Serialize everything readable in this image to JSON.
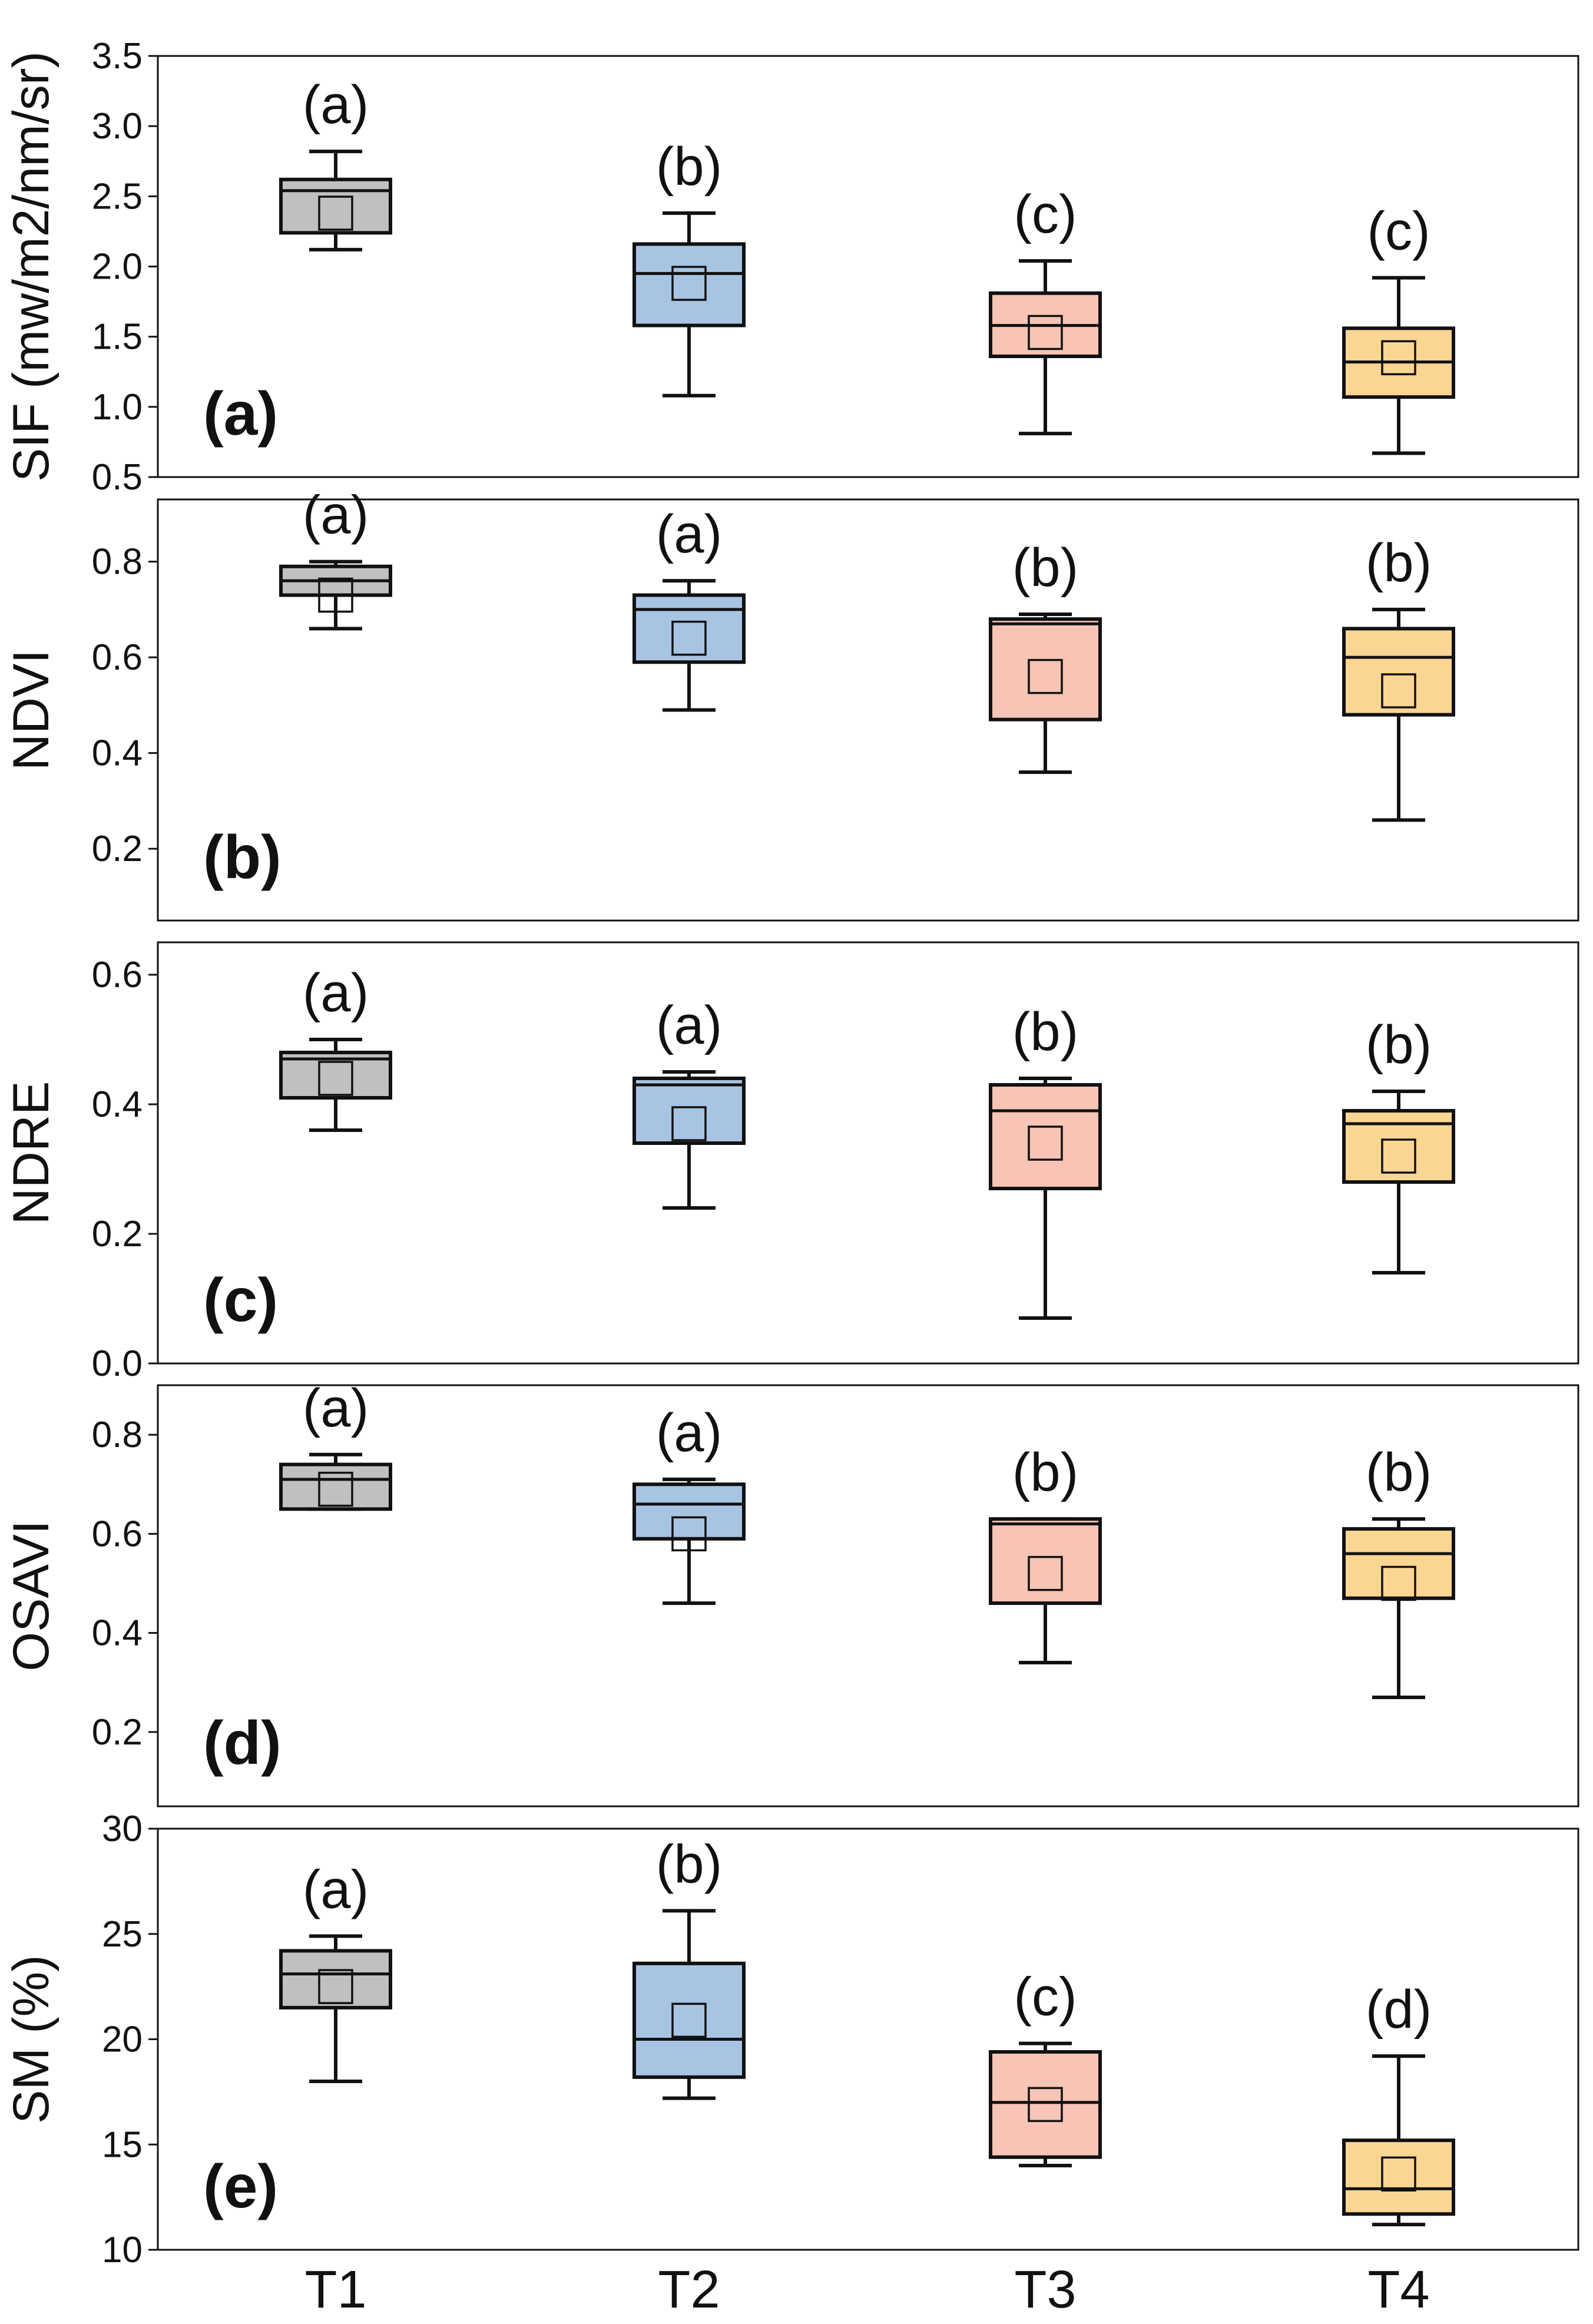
{
  "colors": {
    "T1": "#c0c0c0",
    "T2": "#a7c4e3",
    "T3": "#f7c4b6",
    "T4": "#fbd592",
    "stroke": "#111111"
  },
  "chart_data": [
    {
      "type": "box",
      "panel_label": "(a)",
      "ylabel": "SIF (mw/m2/nm/sr)",
      "ylim": [
        0.5,
        3.5
      ],
      "yticks": [
        "3.5",
        "3.0",
        "2.5",
        "2.0",
        "1.5",
        "1.0",
        "0.5"
      ],
      "ytick_values": [
        3.5,
        3.0,
        2.5,
        2.0,
        1.5,
        1.0,
        0.5
      ],
      "categories": [
        "T1",
        "T2",
        "T3",
        "T4"
      ],
      "boxes": [
        {
          "whisker_low": 2.12,
          "q1": 2.24,
          "median": 2.54,
          "q3": 2.62,
          "whisker_high": 2.82,
          "mean": 2.38,
          "sig": "(a)"
        },
        {
          "whisker_low": 1.08,
          "q1": 1.58,
          "median": 1.95,
          "q3": 2.16,
          "whisker_high": 2.38,
          "mean": 1.88,
          "sig": "(b)"
        },
        {
          "whisker_low": 0.81,
          "q1": 1.36,
          "median": 1.58,
          "q3": 1.81,
          "whisker_high": 2.04,
          "mean": 1.53,
          "sig": "(c)"
        },
        {
          "whisker_low": 0.67,
          "q1": 1.07,
          "median": 1.32,
          "q3": 1.56,
          "whisker_high": 1.92,
          "mean": 1.35,
          "sig": "(c)"
        }
      ]
    },
    {
      "type": "box",
      "panel_label": "(b)",
      "ylabel": "NDVI",
      "ylim": [
        0.05,
        0.93
      ],
      "yticks": [
        "0.8",
        "0.6",
        "0.4",
        "0.2"
      ],
      "ytick_values": [
        0.8,
        0.6,
        0.4,
        0.2
      ],
      "categories": [
        "T1",
        "T2",
        "T3",
        "T4"
      ],
      "boxes": [
        {
          "whisker_low": 0.66,
          "q1": 0.73,
          "median": 0.76,
          "q3": 0.79,
          "whisker_high": 0.8,
          "mean": 0.73,
          "sig": "(a)"
        },
        {
          "whisker_low": 0.49,
          "q1": 0.59,
          "median": 0.7,
          "q3": 0.73,
          "whisker_high": 0.76,
          "mean": 0.64,
          "sig": "(a)"
        },
        {
          "whisker_low": 0.36,
          "q1": 0.47,
          "median": 0.67,
          "q3": 0.68,
          "whisker_high": 0.69,
          "mean": 0.56,
          "sig": "(b)"
        },
        {
          "whisker_low": 0.26,
          "q1": 0.48,
          "median": 0.6,
          "q3": 0.66,
          "whisker_high": 0.7,
          "mean": 0.53,
          "sig": "(b)"
        }
      ]
    },
    {
      "type": "box",
      "panel_label": "(c)",
      "ylabel": "NDRE",
      "ylim": [
        0.0,
        0.65
      ],
      "yticks": [
        "0.6",
        "0.4",
        "0.2",
        "0.0"
      ],
      "ytick_values": [
        0.6,
        0.4,
        0.2,
        0.0
      ],
      "categories": [
        "T1",
        "T2",
        "T3",
        "T4"
      ],
      "boxes": [
        {
          "whisker_low": 0.36,
          "q1": 0.41,
          "median": 0.47,
          "q3": 0.48,
          "whisker_high": 0.5,
          "mean": 0.44,
          "sig": "(a)"
        },
        {
          "whisker_low": 0.24,
          "q1": 0.34,
          "median": 0.43,
          "q3": 0.44,
          "whisker_high": 0.45,
          "mean": 0.37,
          "sig": "(a)"
        },
        {
          "whisker_low": 0.07,
          "q1": 0.27,
          "median": 0.39,
          "q3": 0.43,
          "whisker_high": 0.44,
          "mean": 0.34,
          "sig": "(b)"
        },
        {
          "whisker_low": 0.14,
          "q1": 0.28,
          "median": 0.37,
          "q3": 0.39,
          "whisker_high": 0.42,
          "mean": 0.32,
          "sig": "(b)"
        }
      ]
    },
    {
      "type": "box",
      "panel_label": "(d)",
      "ylabel": "OSAVI",
      "ylim": [
        0.05,
        0.9
      ],
      "yticks": [
        "0.8",
        "0.6",
        "0.4",
        "0.2"
      ],
      "ytick_values": [
        0.8,
        0.6,
        0.4,
        0.2
      ],
      "categories": [
        "T1",
        "T2",
        "T3",
        "T4"
      ],
      "boxes": [
        {
          "whisker_low": 0.65,
          "q1": 0.65,
          "median": 0.71,
          "q3": 0.74,
          "whisker_high": 0.76,
          "mean": 0.69,
          "sig": "(a)"
        },
        {
          "whisker_low": 0.46,
          "q1": 0.59,
          "median": 0.66,
          "q3": 0.7,
          "whisker_high": 0.71,
          "mean": 0.6,
          "sig": "(a)"
        },
        {
          "whisker_low": 0.34,
          "q1": 0.46,
          "median": 0.62,
          "q3": 0.63,
          "whisker_high": 0.63,
          "mean": 0.52,
          "sig": "(b)"
        },
        {
          "whisker_low": 0.27,
          "q1": 0.47,
          "median": 0.56,
          "q3": 0.61,
          "whisker_high": 0.63,
          "mean": 0.5,
          "sig": "(b)"
        }
      ]
    },
    {
      "type": "box",
      "panel_label": "(e)",
      "ylabel": "SM (%)",
      "xlabel": "",
      "ylim": [
        10,
        30
      ],
      "yticks": [
        "30",
        "25",
        "20",
        "15",
        "10"
      ],
      "ytick_values": [
        30,
        25,
        20,
        15,
        10
      ],
      "categories": [
        "T1",
        "T2",
        "T3",
        "T4"
      ],
      "boxes": [
        {
          "whisker_low": 18.0,
          "q1": 21.5,
          "median": 23.1,
          "q3": 24.2,
          "whisker_high": 24.9,
          "mean": 22.5,
          "sig": "(a)"
        },
        {
          "whisker_low": 17.2,
          "q1": 18.2,
          "median": 20.0,
          "q3": 23.6,
          "whisker_high": 26.1,
          "mean": 20.9,
          "sig": "(b)"
        },
        {
          "whisker_low": 14.0,
          "q1": 14.4,
          "median": 17.0,
          "q3": 19.4,
          "whisker_high": 19.8,
          "mean": 16.9,
          "sig": "(c)"
        },
        {
          "whisker_low": 11.2,
          "q1": 11.7,
          "median": 12.9,
          "q3": 15.2,
          "whisker_high": 19.2,
          "mean": 13.6,
          "sig": "(d)"
        }
      ]
    }
  ]
}
